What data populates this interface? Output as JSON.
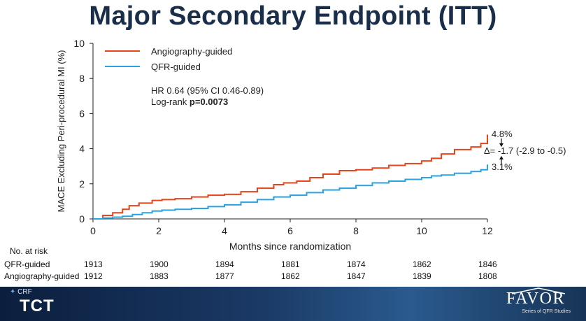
{
  "slide": {
    "title": "Major Secondary Endpoint (ITT)"
  },
  "chart_data": {
    "type": "line",
    "title": "",
    "xlabel": "Months since randomization",
    "ylabel": "MACE Excluding Peri-procedural MI (%)",
    "xlim": [
      0,
      12
    ],
    "ylim": [
      0,
      10
    ],
    "xticks": [
      0,
      2,
      4,
      6,
      8,
      10,
      12
    ],
    "yticks": [
      0,
      2,
      4,
      6,
      8,
      10
    ],
    "grid": false,
    "legend_position": "top-left",
    "series": [
      {
        "name": "Angiography-guided",
        "color": "#e8441a",
        "x": [
          0,
          0.3,
          0.6,
          0.9,
          1.1,
          1.4,
          1.8,
          2.1,
          2.5,
          3.0,
          3.5,
          4.0,
          4.5,
          5.0,
          5.5,
          5.8,
          6.2,
          6.6,
          7.0,
          7.5,
          8.0,
          8.5,
          9.0,
          9.5,
          10.0,
          10.3,
          10.6,
          11.0,
          11.5,
          11.8,
          12.0
        ],
        "y": [
          0,
          0.2,
          0.35,
          0.55,
          0.75,
          0.9,
          1.05,
          1.1,
          1.15,
          1.25,
          1.35,
          1.4,
          1.55,
          1.75,
          1.95,
          2.05,
          2.15,
          2.35,
          2.55,
          2.75,
          2.8,
          2.9,
          3.05,
          3.15,
          3.3,
          3.45,
          3.7,
          3.95,
          4.1,
          4.3,
          4.8
        ]
      },
      {
        "name": "QFR-guided",
        "color": "#2aa3e0",
        "x": [
          0,
          0.3,
          0.6,
          0.9,
          1.2,
          1.5,
          1.8,
          2.1,
          2.5,
          3.0,
          3.5,
          4.0,
          4.5,
          5.0,
          5.5,
          6.0,
          6.5,
          7.0,
          7.5,
          8.0,
          8.5,
          9.0,
          9.5,
          10.0,
          10.3,
          10.6,
          11.0,
          11.5,
          11.8,
          12.0
        ],
        "y": [
          0,
          0.05,
          0.1,
          0.15,
          0.25,
          0.35,
          0.45,
          0.5,
          0.55,
          0.6,
          0.7,
          0.8,
          0.95,
          1.1,
          1.25,
          1.35,
          1.5,
          1.65,
          1.75,
          1.9,
          2.05,
          2.15,
          2.25,
          2.35,
          2.45,
          2.5,
          2.6,
          2.7,
          2.8,
          3.1
        ]
      }
    ],
    "annotations": {
      "hr_text": "HR 0.64 (95% CI 0.46-0.89)",
      "logrank_prefix": "Log-rank ",
      "logrank_p": "p=0.0073",
      "angio_end_label": "4.8%",
      "qfr_end_label": "3.1%",
      "delta_label": "Δ= -1.7 (-2.9 to -0.5)"
    },
    "risk_table": {
      "title": "No. at risk",
      "rows": [
        {
          "label": "QFR-guided",
          "values": [
            "1913",
            "1900",
            "1894",
            "1881",
            "1874",
            "1862",
            "1846"
          ]
        },
        {
          "label": "Angiography-guided",
          "values": [
            "1912",
            "1883",
            "1877",
            "1862",
            "1847",
            "1839",
            "1808"
          ]
        }
      ]
    }
  },
  "footer": {
    "crf": "CRF",
    "tct": "TCT",
    "favor": "FAVOR",
    "favor_sub": "Series of QFR Studies"
  }
}
